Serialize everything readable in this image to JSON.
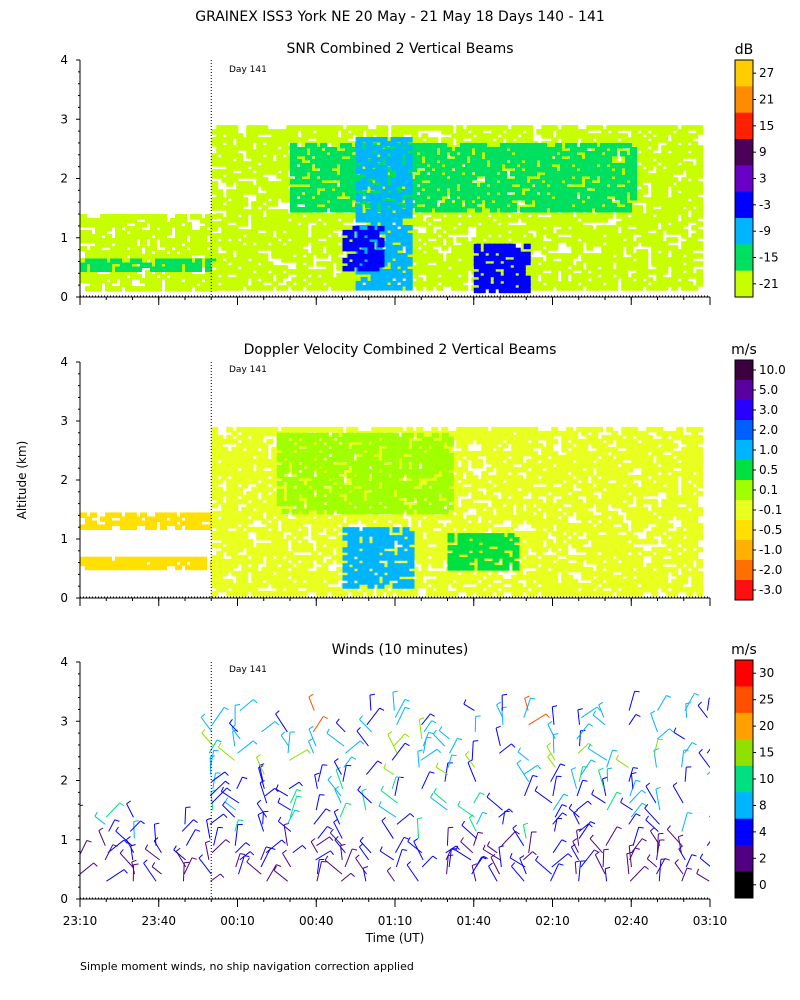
{
  "page_title": "GRAINEX ISS3 York NE  20 May - 21 May 18 Days 140 - 141",
  "footnote": "Simple moment winds, no ship navigation correction applied",
  "shared_axes": {
    "ylabel": "Altitude (km)",
    "xlabel": "Time (UT)",
    "x_start": "23:10",
    "x_end": "03:10",
    "x_ticks": [
      "23:10",
      "23:40",
      "00:10",
      "00:40",
      "01:10",
      "01:40",
      "02:10",
      "02:40",
      "03:10"
    ],
    "y_ticks": [
      "0",
      "1",
      "2",
      "3",
      "4"
    ],
    "ylim": [
      0,
      4
    ]
  },
  "day_marker": {
    "label": "Day 141",
    "time": "00:00"
  },
  "chart_data": [
    {
      "type": "heatmap",
      "title": "SNR Combined 2 Vertical Beams",
      "unit": "dB",
      "colorbar_labels": [
        "27",
        "21",
        "15",
        "9",
        "3",
        "-3",
        "-9",
        "-15",
        "-21"
      ],
      "colorbar_colors": [
        "#ffcc00",
        "#ff8c00",
        "#ff2000",
        "#4b005a",
        "#6a00c8",
        "#0000ff",
        "#00b4ff",
        "#00e060",
        "#c8ff00"
      ],
      "regions": [
        {
          "t0": "23:10",
          "t1": "00:00",
          "z0": 0.12,
          "z1": 1.4,
          "color": "#c8ff00"
        },
        {
          "t0": "23:10",
          "t1": "00:00",
          "z0": 0.5,
          "z1": 0.65,
          "color": "#00e060"
        },
        {
          "t0": "00:00",
          "t1": "03:05",
          "z0": 0.15,
          "z1": 2.9,
          "color": "#c8ff00"
        },
        {
          "t0": "00:30",
          "t1": "02:40",
          "z0": 1.5,
          "z1": 2.6,
          "color": "#00e060"
        },
        {
          "t0": "00:55",
          "t1": "01:15",
          "z0": 0.15,
          "z1": 2.7,
          "color": "#00b4ff"
        },
        {
          "t0": "01:40",
          "t1": "02:00",
          "z0": 0.15,
          "z1": 0.9,
          "color": "#0000ff"
        },
        {
          "t0": "00:50",
          "t1": "01:05",
          "z0": 0.5,
          "z1": 1.2,
          "color": "#0000ff"
        }
      ]
    },
    {
      "type": "heatmap",
      "title": "Doppler Velocity Combined 2 Vertical Beams",
      "unit": "m/s",
      "colorbar_labels": [
        "10.0",
        "5.0",
        "3.0",
        "2.0",
        "1.0",
        "0.5",
        "0.1",
        "-0.1",
        "-0.5",
        "-1.0",
        "-2.0",
        "-3.0"
      ],
      "colorbar_colors": [
        "#3c0040",
        "#5a00a0",
        "#2800ff",
        "#0060ff",
        "#00b4ff",
        "#00e040",
        "#a0ff00",
        "#e8ff20",
        "#ffe000",
        "#ffb000",
        "#ff7000",
        "#ff1010"
      ],
      "regions": [
        {
          "t0": "23:10",
          "t1": "00:00",
          "z0": 1.2,
          "z1": 1.45,
          "color": "#ffe000"
        },
        {
          "t0": "23:10",
          "t1": "00:00",
          "z0": 0.5,
          "z1": 0.7,
          "color": "#ffe000"
        },
        {
          "t0": "00:00",
          "t1": "03:05",
          "z0": 0.1,
          "z1": 2.9,
          "color": "#e8ff20"
        },
        {
          "t0": "00:25",
          "t1": "01:30",
          "z0": 1.5,
          "z1": 2.8,
          "color": "#a0ff00"
        },
        {
          "t0": "00:50",
          "t1": "01:15",
          "z0": 0.2,
          "z1": 1.2,
          "color": "#00b4ff"
        },
        {
          "t0": "01:30",
          "t1": "01:55",
          "z0": 0.5,
          "z1": 1.1,
          "color": "#00e040"
        }
      ]
    },
    {
      "type": "scatter",
      "title": "Winds (10 minutes)",
      "unit": "m/s",
      "colorbar_labels": [
        "30",
        "25",
        "20",
        "15",
        "10",
        "8",
        "4",
        "2",
        "0"
      ],
      "colorbar_colors": [
        "#ff0000",
        "#ff5000",
        "#ffa000",
        "#90e000",
        "#00e080",
        "#00b4ff",
        "#0000ff",
        "#500080",
        "#000000"
      ],
      "mark": "wind-barb"
    }
  ]
}
